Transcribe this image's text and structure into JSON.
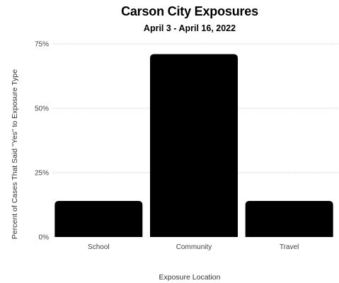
{
  "chart_data": {
    "type": "bar",
    "title": "Carson City Exposures",
    "subtitle": "April 3 - April 16, 2022",
    "xlabel": "Exposure Location",
    "ylabel": "Percent of Cases That Said \"Yes\" to Exposure Type",
    "categories": [
      "School",
      "Community",
      "Travel"
    ],
    "values": [
      14,
      71,
      14
    ],
    "ylim": [
      0,
      75
    ],
    "yticks": [
      0,
      25,
      50,
      75
    ],
    "ytick_labels": [
      "0%",
      "25%",
      "50%",
      "75%"
    ],
    "grid": true,
    "bar_color": "#000000",
    "grid_color": "#cccccc"
  }
}
